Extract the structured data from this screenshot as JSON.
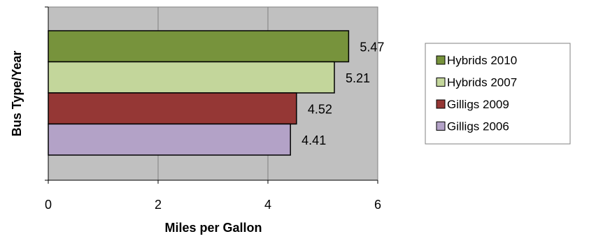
{
  "chart_data": {
    "type": "bar",
    "orientation": "horizontal",
    "xlabel": "Miles per Gallon",
    "ylabel": "Bus Type/Year",
    "xlim": [
      0,
      6
    ],
    "xticks": [
      "0",
      "2",
      "4",
      "6"
    ],
    "grid": true,
    "legend_position": "right",
    "plot_background": "#c0c0c0",
    "series": [
      {
        "name": "Hybrids 2010",
        "value": 5.47,
        "label": "5.47",
        "color": "#77933c"
      },
      {
        "name": "Hybrids 2007",
        "value": 5.21,
        "label": "5.21",
        "color": "#c3d69b"
      },
      {
        "name": "Gilligs 2009",
        "value": 4.52,
        "label": "4.52",
        "color": "#953735"
      },
      {
        "name": "Gilligs 2006",
        "value": 4.41,
        "label": "4.41",
        "color": "#b3a2c7"
      }
    ]
  }
}
